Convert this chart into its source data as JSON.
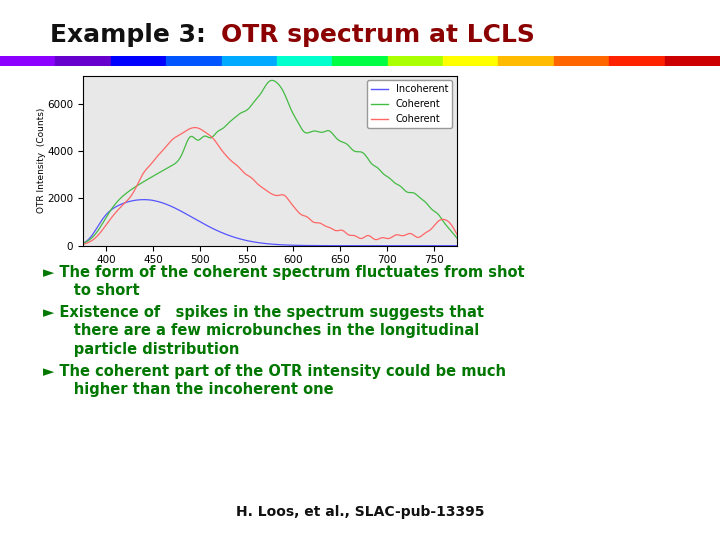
{
  "title_black": "Example 3: ",
  "title_red": "OTR spectrum at LCLS",
  "title_fontsize": 18,
  "title_black_color": "#111111",
  "title_red_color": "#8B0000",
  "rainbow_colors": [
    "#8B00FF",
    "#6600CC",
    "#0000FF",
    "#0055FF",
    "#00AAFF",
    "#00FFCC",
    "#00FF44",
    "#AAFF00",
    "#FFFF00",
    "#FFBB00",
    "#FF6600",
    "#FF2200",
    "#CC0000"
  ],
  "bullet_color": "#007700",
  "bullet_fontsize": 10.5,
  "footer": "H. Loos, et al., SLAC-pub-13395",
  "footer_fontsize": 10,
  "footer_color": "#111111",
  "plot_ylabel": "OTR Intensity  (Counts)",
  "plot_xlabel_ticks": [
    400,
    450,
    500,
    550,
    600,
    650,
    700,
    750
  ],
  "plot_yticks": [
    0,
    2000,
    4000,
    6000
  ],
  "plot_xlim": [
    375,
    775
  ],
  "plot_ylim": [
    0,
    7200
  ],
  "incoherent_color": "#5555FF",
  "coherent1_color": "#44BB44",
  "coherent2_color": "#FF6666",
  "bg_color": "#FFFFFF",
  "plot_bg": "#E8E8E8"
}
